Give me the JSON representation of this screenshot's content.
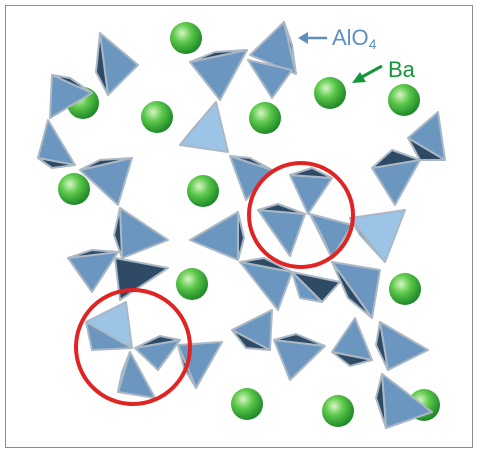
{
  "figure": {
    "legend": {
      "alo4": {
        "text": "AlO",
        "subscript": "4",
        "color": "#5e8fbf",
        "arrow_icon": "left-arrow-icon"
      },
      "ba": {
        "text": "Ba",
        "color": "#16963c",
        "arrow_icon": "diagonal-arrow-icon"
      }
    },
    "colors": {
      "tetra_light": "#9cc4e6",
      "tetra_mid": "#6a96bf",
      "tetra_dark": "#2f4a64",
      "tetra_edge": "#aab7c4",
      "sphere_center": "#d8f5c4",
      "sphere_mid": "#5cc84a",
      "sphere_edge": "#1f8a2a",
      "ring": "#e02424",
      "frame": "#8c8c8c"
    },
    "highlighted_rings": 2
  }
}
